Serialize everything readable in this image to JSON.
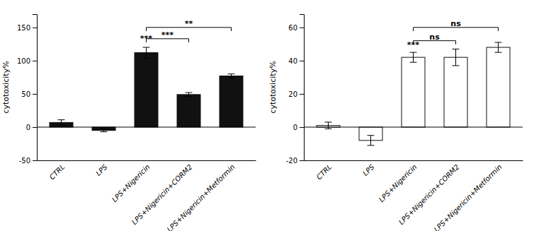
{
  "chart_data": [
    {
      "type": "bar",
      "categories": [
        "CTRL",
        "LPS",
        "LPS+Nigericin",
        "LPS+Nigericin+CORM2",
        "LPS+Nigericin+Metformin"
      ],
      "values": [
        7,
        -5,
        112,
        49,
        77
      ],
      "errors": [
        4,
        2,
        8,
        3,
        3
      ],
      "color": "#111111",
      "ylim": [
        -50,
        170
      ],
      "yticks": [
        -50,
        0,
        50,
        100,
        150
      ],
      "ylabel": "cytotoxicity%",
      "grid": false,
      "annotations": [
        {
          "text": "***",
          "category": "LPS+Nigericin",
          "y": 130
        },
        {
          "text": "***",
          "from": "LPS+Nigericin",
          "to": "LPS+Nigericin+CORM2",
          "y": 133
        },
        {
          "text": "**",
          "from": "LPS+Nigericin",
          "to": "LPS+Nigericin+Metformin",
          "y": 150
        }
      ]
    },
    {
      "type": "bar",
      "categories": [
        "CTRL",
        "LPS",
        "LPS+Nigericin",
        "LPS+Nigericin+CORM2",
        "LPS+Nigericin+Metformin"
      ],
      "values": [
        1,
        -8,
        42,
        42,
        48
      ],
      "errors": [
        2,
        3,
        3,
        5,
        3
      ],
      "color": "#ffffff",
      "ylim": [
        -20,
        68
      ],
      "yticks": [
        -20,
        0,
        20,
        40,
        60
      ],
      "ylabel": "cytotoxicity%",
      "grid": false,
      "annotations": [
        {
          "text": "***",
          "category": "LPS+Nigericin",
          "y": 48
        },
        {
          "text": "ns",
          "from": "LPS+Nigericin",
          "to": "LPS+Nigericin+CORM2",
          "y": 52
        },
        {
          "text": "ns",
          "from": "LPS+Nigericin",
          "to": "LPS+Nigericin+Metformin",
          "y": 60
        }
      ]
    }
  ]
}
